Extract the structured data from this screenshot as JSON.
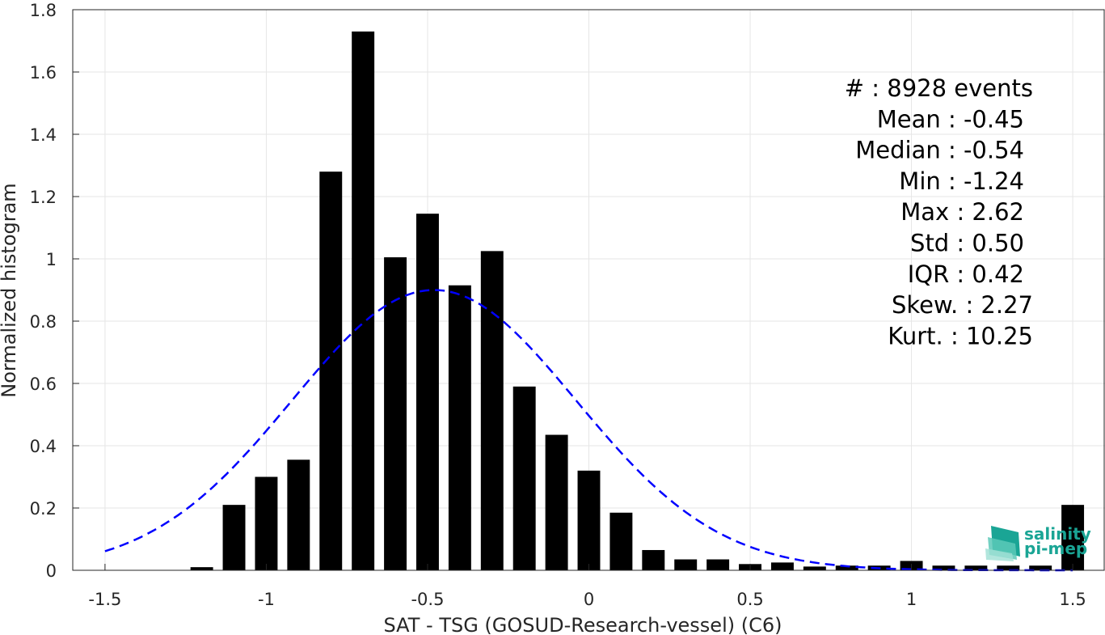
{
  "chart_data": {
    "type": "bar",
    "xlabel": "SAT - TSG (GOSUD-Research-vessel) (C6)",
    "ylabel": "Normalized histogram",
    "xlim": [
      -1.6,
      1.6
    ],
    "ylim": [
      0,
      1.8
    ],
    "xticks": [
      -1.5,
      -1,
      -0.5,
      0,
      0.5,
      1,
      1.5
    ],
    "xtick_labels": [
      "-1.5",
      "-1",
      "-0.5",
      "0",
      "0.5",
      "1",
      "1.5"
    ],
    "yticks": [
      0,
      0.2,
      0.4,
      0.6,
      0.8,
      1,
      1.2,
      1.4,
      1.6,
      1.8
    ],
    "ytick_labels": [
      "0",
      "0.2",
      "0.4",
      "0.6",
      "0.8",
      "1",
      "1.2",
      "1.4",
      "1.6",
      "1.8"
    ],
    "grid": true,
    "bar_width": 0.07,
    "bars": {
      "x": [
        -1.2,
        -1.1,
        -1.0,
        -0.9,
        -0.8,
        -0.7,
        -0.6,
        -0.5,
        -0.4,
        -0.3,
        -0.2,
        -0.1,
        0.0,
        0.1,
        0.2,
        0.3,
        0.4,
        0.5,
        0.6,
        0.7,
        0.8,
        0.9,
        1.0,
        1.1,
        1.2,
        1.3,
        1.4,
        1.5
      ],
      "values": [
        0.01,
        0.21,
        0.3,
        0.355,
        1.28,
        1.73,
        1.005,
        1.145,
        0.915,
        1.025,
        0.59,
        0.435,
        0.32,
        0.185,
        0.065,
        0.035,
        0.035,
        0.02,
        0.025,
        0.012,
        0.015,
        0.015,
        0.03,
        0.015,
        0.015,
        0.015,
        0.015,
        0.21
      ],
      "color": "#000000"
    },
    "fit_curve": {
      "kind": "normal",
      "mean": -0.48,
      "peak": 0.9,
      "std": 0.44,
      "x_range": [
        -1.5,
        1.5
      ],
      "style": "dashed",
      "color": "#0000ff"
    },
    "stats": [
      {
        "label": "#",
        "sep": " : ",
        "value": "8928 events"
      },
      {
        "label": "Mean",
        "sep": " : ",
        "value": "-0.45"
      },
      {
        "label": "Median",
        "sep": " : ",
        "value": "-0.54"
      },
      {
        "label": "Min",
        "sep": " : ",
        "value": "-1.24"
      },
      {
        "label": "Max",
        "sep": " : ",
        "value": "2.62"
      },
      {
        "label": "Std",
        "sep": " : ",
        "value": "0.50"
      },
      {
        "label": "IQR",
        "sep": " : ",
        "value": "0.42"
      },
      {
        "label": "Skew.",
        "sep": " : ",
        "value": "2.27"
      },
      {
        "label": "Kurt.",
        "sep": " : ",
        "value": "10.25"
      }
    ]
  },
  "logo": {
    "line1": "salinity",
    "line2": "pi-mep",
    "color": "#1aa595"
  }
}
